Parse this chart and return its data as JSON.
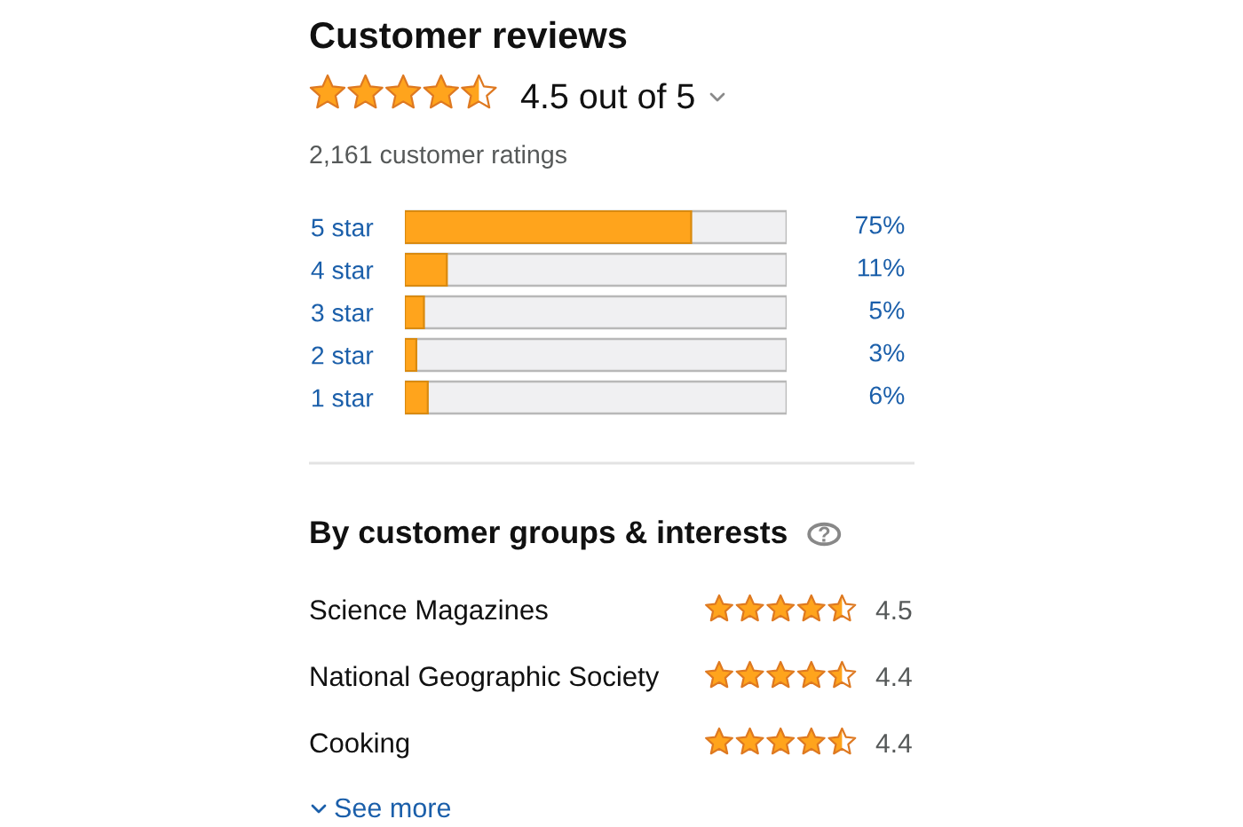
{
  "chart_data": [
    {
      "type": "bar",
      "orientation": "horizontal",
      "title": "Customer reviews",
      "subtitle": "4.5 out of 5",
      "annotations": [
        "2,161 customer ratings"
      ],
      "categories": [
        "5 star",
        "4 star",
        "3 star",
        "2 star",
        "1 star"
      ],
      "values": [
        75,
        11,
        5,
        3,
        6
      ],
      "value_labels": [
        "75%",
        "11%",
        "5%",
        "3%",
        "6%"
      ],
      "color": "#ffa41c",
      "xlim": [
        0,
        100
      ],
      "tick_labels": "y"
    },
    {
      "type": "other",
      "title": "By customer groups & interests",
      "categories": [
        "Science Magazines",
        "National Geographic Society",
        "Cooking"
      ],
      "values": [
        4.5,
        4.4,
        4.4
      ],
      "data_labels": true,
      "annotations": [
        "See more"
      ]
    }
  ]
}
